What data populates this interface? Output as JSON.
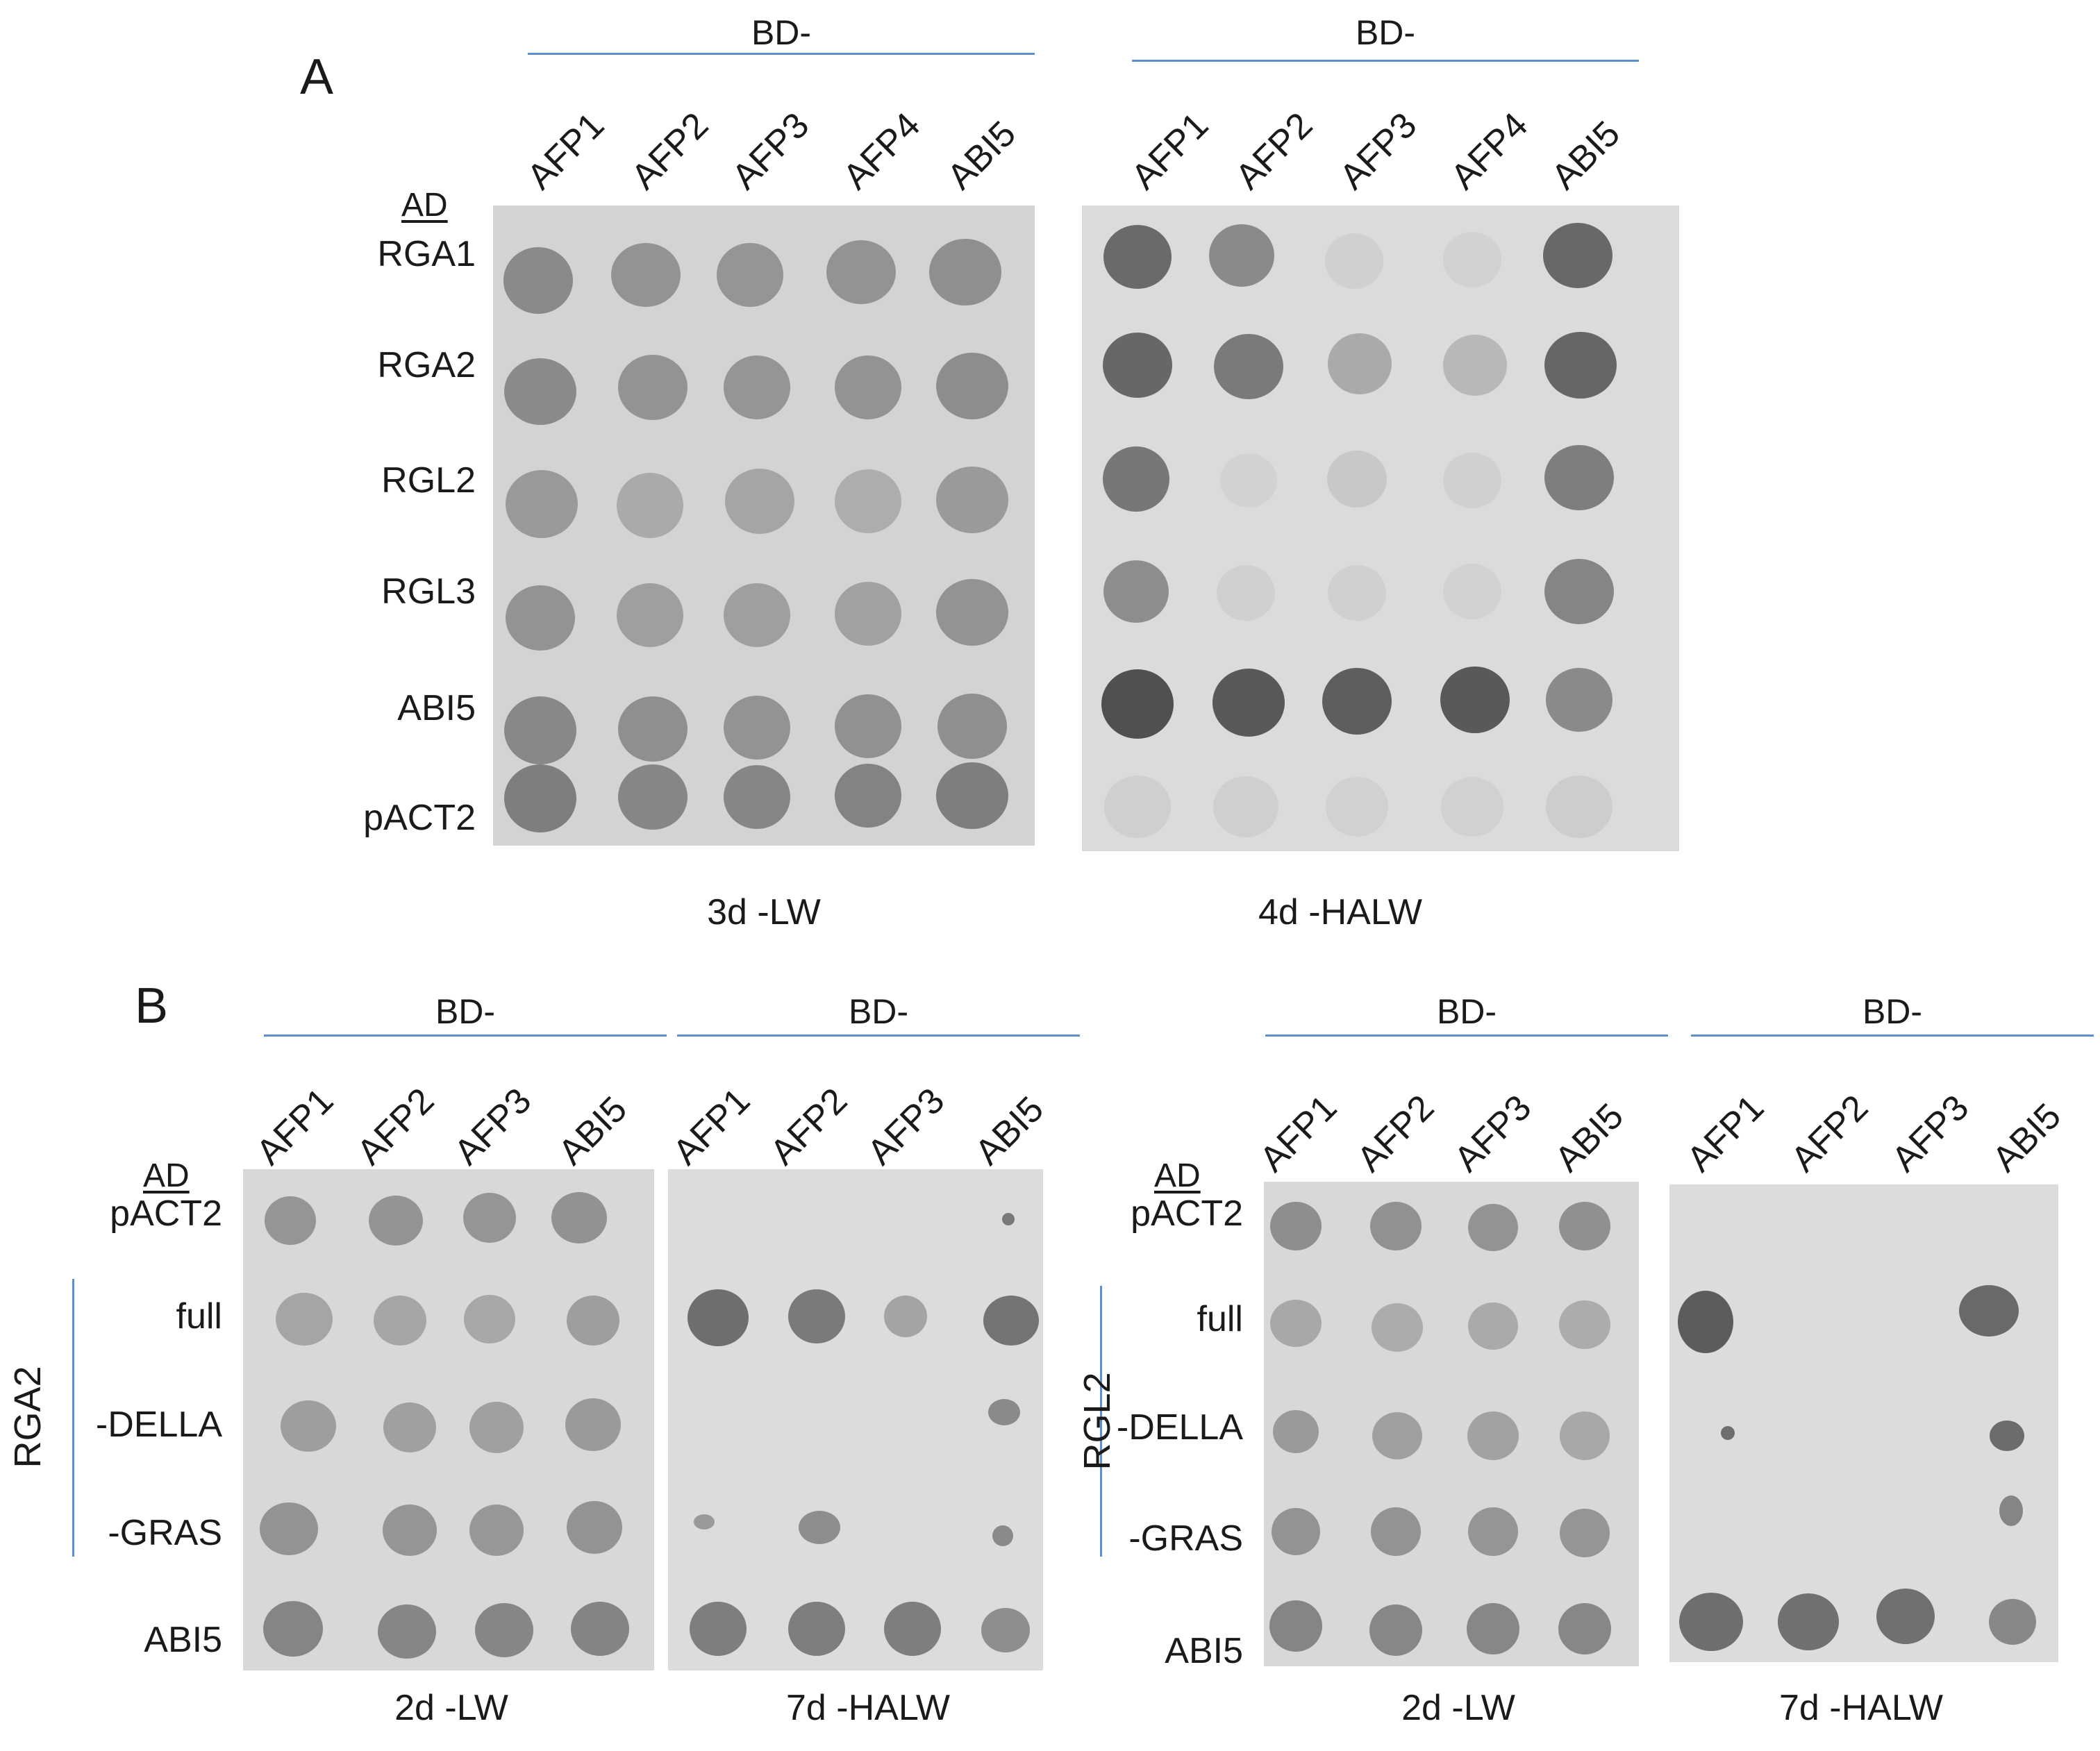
{
  "panelA": {
    "letter": "A",
    "bd_labels": [
      "BD-",
      "BD-"
    ],
    "columns": [
      "AFP1",
      "AFP2",
      "AFP3",
      "AFP4",
      "ABI5"
    ],
    "ad_label": "AD",
    "rows": [
      "RGA1",
      "RGA2",
      "RGL2",
      "RGL3",
      "ABI5",
      "pACT2"
    ],
    "conditions": [
      "3d -LW",
      "4d -HALW"
    ]
  },
  "panelB": {
    "letter": "B",
    "bd_labels": [
      "BD-",
      "BD-",
      "BD-",
      "BD-"
    ],
    "columns": [
      "AFP1",
      "AFP2",
      "AFP3",
      "ABI5"
    ],
    "ad_label": "AD",
    "rows": [
      "pACT2",
      "full",
      "-DELLA",
      "-GRAS",
      "ABI5"
    ],
    "groups": [
      "RGA2",
      "RGL2"
    ],
    "conditions": [
      "2d -LW",
      "7d -HALW",
      "2d -LW",
      "7d -HALW"
    ]
  }
}
